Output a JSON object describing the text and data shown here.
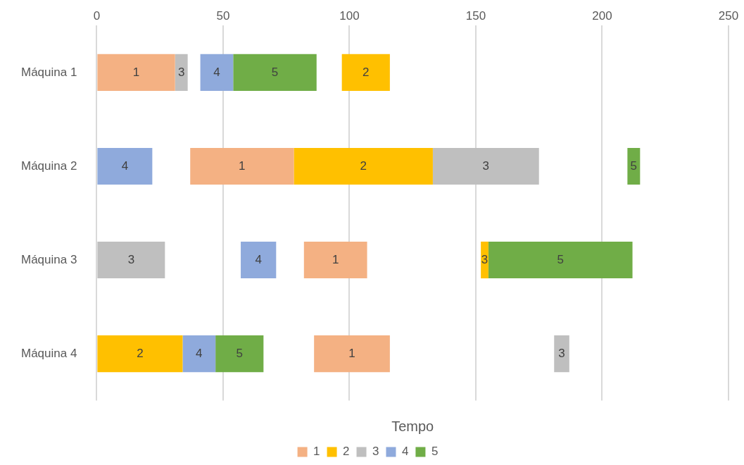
{
  "chart_data": {
    "type": "bar",
    "orientation": "horizontal",
    "xlabel": "Tempo",
    "categories": [
      "Máquina 1",
      "Máquina 2",
      "Máquina 3",
      "Máquina 4"
    ],
    "series": [
      {
        "name": "1",
        "color": "#f4b183",
        "base": [
          0,
          37,
          82,
          86
        ],
        "values": [
          31,
          41,
          25,
          30
        ]
      },
      {
        "name": "2",
        "color": "#ffc000",
        "base": [
          97,
          78,
          152,
          0
        ],
        "values": [
          19,
          55,
          3,
          34
        ]
      },
      {
        "name": "3",
        "color": "#bfbfbf",
        "base": [
          31,
          133,
          0,
          181
        ],
        "values": [
          5,
          42,
          27,
          6
        ]
      },
      {
        "name": "4",
        "color": "#8faadc",
        "base": [
          41,
          0,
          57,
          34
        ],
        "values": [
          13,
          22,
          14,
          13
        ]
      },
      {
        "name": "5",
        "color": "#70ad47",
        "base": [
          54,
          210,
          155,
          47
        ],
        "values": [
          33,
          5,
          57,
          19
        ]
      }
    ],
    "annotations": [
      {
        "text": "3",
        "x": 155,
        "y": "Máquina 3"
      }
    ],
    "xlim": [
      0,
      250
    ],
    "xticks": [
      0,
      50,
      100,
      150,
      200,
      250
    ],
    "grid": "x",
    "legend": "bottom"
  }
}
